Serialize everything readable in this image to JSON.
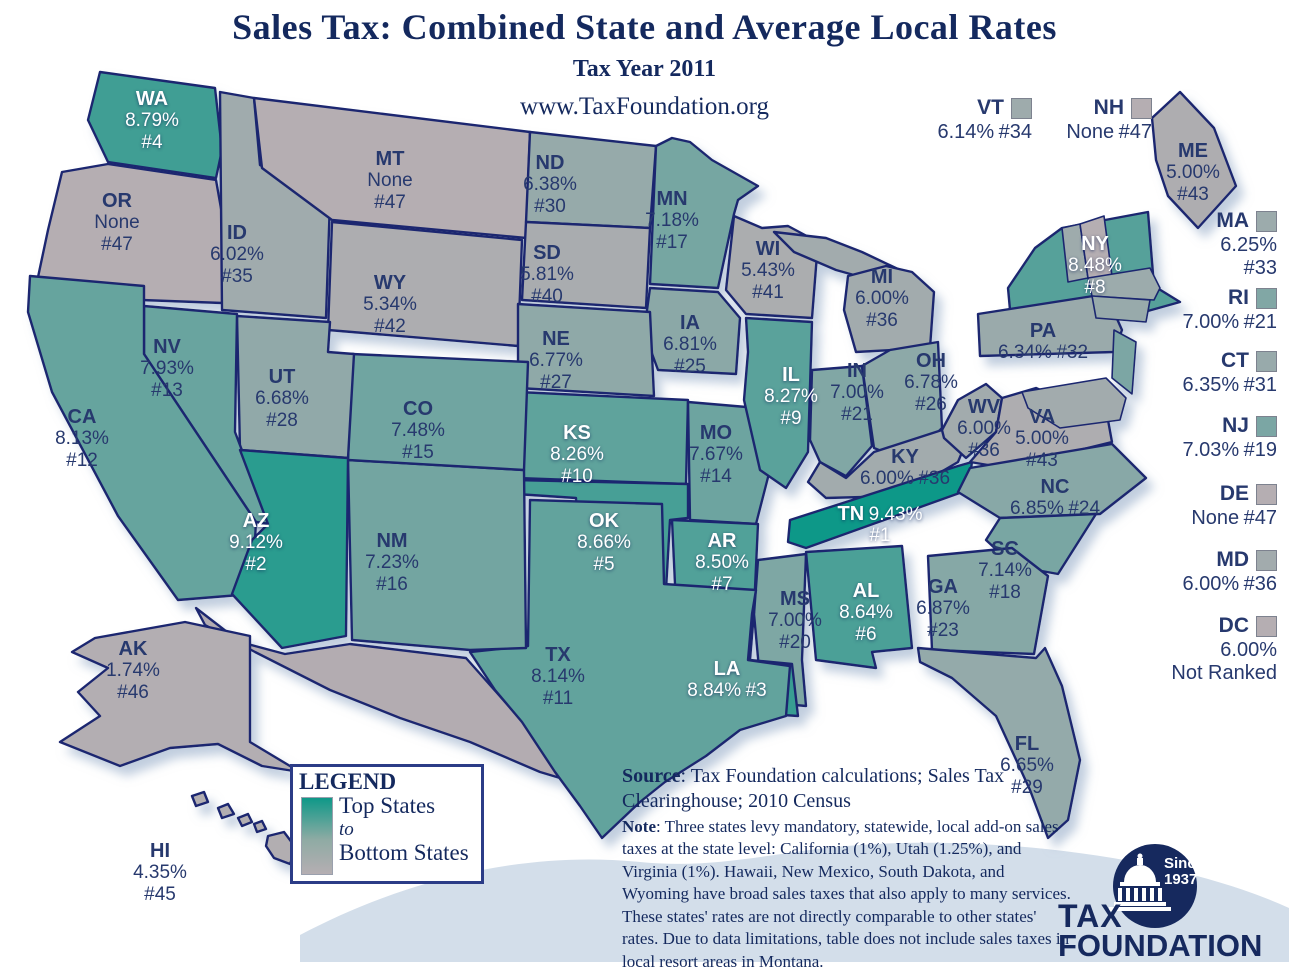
{
  "title": "Sales Tax: Combined State and Average Local Rates",
  "subtitle": "Tax Year 2011",
  "website": "www.TaxFoundation.org",
  "legend": {
    "title": "LEGEND",
    "top": "Top States",
    "middle": "to",
    "bottom": "Bottom States"
  },
  "notes": {
    "source_label": "Source",
    "source_text": ": Tax Foundation calculations; Sales Tax Clearinghouse; 2010 Census",
    "note_label": "Note",
    "note_text": ": Three states levy mandatory, statewide, local add-on sales taxes at the state level: California (1%), Utah (1.25%), and Virginia (1%).  Hawaii, New Mexico, South Dakota, and Wyoming have broad sales taxes that also apply to many services. These states' rates are not directly comparable to other states' rates. Due to data limitations, table does not include sales taxes in local resort areas in Montana."
  },
  "logo": {
    "since": "Since",
    "year": "1937",
    "name_line1": "TAX",
    "name_line2": "FOUNDATION"
  },
  "colors": {
    "top_state": "#0E9888",
    "bottom_state": "#B5AEB2",
    "outline": "#1A2870",
    "label_navy": "#27396E",
    "label_white": "#FFFFFF",
    "title_navy": "#14295E",
    "water_shadow": "#D3DEEA",
    "logo_navy": "#16295E"
  },
  "chart_data": {
    "type": "choropleth-map",
    "region": "United States",
    "metric": "Combined state and average local sales tax rates, Tax Year 2011",
    "legend_note": "Top States to Bottom States (dark teal = highest rate rank, gray = lowest)",
    "states": [
      {
        "abbr": "WA",
        "rate": "8.79%",
        "rank": "#4",
        "rank_num": 4
      },
      {
        "abbr": "OR",
        "rate": "None",
        "rank": "#47",
        "rank_num": 47
      },
      {
        "abbr": "CA",
        "rate": "8.13%",
        "rank": "#12",
        "rank_num": 12
      },
      {
        "abbr": "NV",
        "rate": "7.93%",
        "rank": "#13",
        "rank_num": 13
      },
      {
        "abbr": "ID",
        "rate": "6.02%",
        "rank": "#35",
        "rank_num": 35
      },
      {
        "abbr": "MT",
        "rate": "None",
        "rank": "#47",
        "rank_num": 47
      },
      {
        "abbr": "WY",
        "rate": "5.34%",
        "rank": "#42",
        "rank_num": 42
      },
      {
        "abbr": "UT",
        "rate": "6.68%",
        "rank": "#28",
        "rank_num": 28
      },
      {
        "abbr": "AZ",
        "rate": "9.12%",
        "rank": "#2",
        "rank_num": 2
      },
      {
        "abbr": "NM",
        "rate": "7.23%",
        "rank": "#16",
        "rank_num": 16
      },
      {
        "abbr": "CO",
        "rate": "7.48%",
        "rank": "#15",
        "rank_num": 15
      },
      {
        "abbr": "ND",
        "rate": "6.38%",
        "rank": "#30",
        "rank_num": 30
      },
      {
        "abbr": "SD",
        "rate": "5.81%",
        "rank": "#40",
        "rank_num": 40
      },
      {
        "abbr": "NE",
        "rate": "6.77%",
        "rank": "#27",
        "rank_num": 27
      },
      {
        "abbr": "KS",
        "rate": "8.26%",
        "rank": "#10",
        "rank_num": 10
      },
      {
        "abbr": "OK",
        "rate": "8.66%",
        "rank": "#5",
        "rank_num": 5
      },
      {
        "abbr": "TX",
        "rate": "8.14%",
        "rank": "#11",
        "rank_num": 11
      },
      {
        "abbr": "MN",
        "rate": "7.18%",
        "rank": "#17",
        "rank_num": 17
      },
      {
        "abbr": "IA",
        "rate": "6.81%",
        "rank": "#25",
        "rank_num": 25
      },
      {
        "abbr": "MO",
        "rate": "7.67%",
        "rank": "#14",
        "rank_num": 14
      },
      {
        "abbr": "AR",
        "rate": "8.50%",
        "rank": "#7",
        "rank_num": 7
      },
      {
        "abbr": "LA",
        "rate": "8.84%",
        "rank": "#3",
        "rank_num": 3
      },
      {
        "abbr": "WI",
        "rate": "5.43%",
        "rank": "#41",
        "rank_num": 41
      },
      {
        "abbr": "IL",
        "rate": "8.27%",
        "rank": "#9",
        "rank_num": 9
      },
      {
        "abbr": "MI",
        "rate": "6.00%",
        "rank": "#36",
        "rank_num": 36
      },
      {
        "abbr": "IN",
        "rate": "7.00%",
        "rank": "#21",
        "rank_num": 21
      },
      {
        "abbr": "OH",
        "rate": "6.78%",
        "rank": "#26",
        "rank_num": 26
      },
      {
        "abbr": "KY",
        "rate": "6.00%",
        "rank": "#36",
        "rank_num": 36
      },
      {
        "abbr": "TN",
        "rate": "9.43%",
        "rank": "#1",
        "rank_num": 1
      },
      {
        "abbr": "MS",
        "rate": "7.00%",
        "rank": "#20",
        "rank_num": 20
      },
      {
        "abbr": "AL",
        "rate": "8.64%",
        "rank": "#6",
        "rank_num": 6
      },
      {
        "abbr": "GA",
        "rate": "6.87%",
        "rank": "#23",
        "rank_num": 23
      },
      {
        "abbr": "FL",
        "rate": "6.65%",
        "rank": "#29",
        "rank_num": 29
      },
      {
        "abbr": "SC",
        "rate": "7.14%",
        "rank": "#18",
        "rank_num": 18
      },
      {
        "abbr": "NC",
        "rate": "6.85%",
        "rank": "#24",
        "rank_num": 24
      },
      {
        "abbr": "VA",
        "rate": "5.00%",
        "rank": "#43",
        "rank_num": 43
      },
      {
        "abbr": "WV",
        "rate": "6.00%",
        "rank": "#36",
        "rank_num": 36
      },
      {
        "abbr": "PA",
        "rate": "6.34%",
        "rank": "#32",
        "rank_num": 32
      },
      {
        "abbr": "NY",
        "rate": "8.48%",
        "rank": "#8",
        "rank_num": 8
      },
      {
        "abbr": "ME",
        "rate": "5.00%",
        "rank": "#43",
        "rank_num": 43
      },
      {
        "abbr": "VT",
        "rate": "6.14%",
        "rank": "#34",
        "rank_num": 34
      },
      {
        "abbr": "NH",
        "rate": "None",
        "rank": "#47",
        "rank_num": 47
      },
      {
        "abbr": "MA",
        "rate": "6.25%",
        "rank": "#33",
        "rank_num": 33
      },
      {
        "abbr": "RI",
        "rate": "7.00%",
        "rank": "#21",
        "rank_num": 21
      },
      {
        "abbr": "CT",
        "rate": "6.35%",
        "rank": "#31",
        "rank_num": 31
      },
      {
        "abbr": "NJ",
        "rate": "7.03%",
        "rank": "#19",
        "rank_num": 19
      },
      {
        "abbr": "DE",
        "rate": "None",
        "rank": "#47",
        "rank_num": 47
      },
      {
        "abbr": "MD",
        "rate": "6.00%",
        "rank": "#36",
        "rank_num": 36
      },
      {
        "abbr": "DC",
        "rate": "6.00%",
        "rank": "Not Ranked",
        "rank_num": null
      },
      {
        "abbr": "AK",
        "rate": "1.74%",
        "rank": "#46",
        "rank_num": 46
      },
      {
        "abbr": "HI",
        "rate": "4.35%",
        "rank": "#45",
        "rank_num": 45
      }
    ]
  }
}
